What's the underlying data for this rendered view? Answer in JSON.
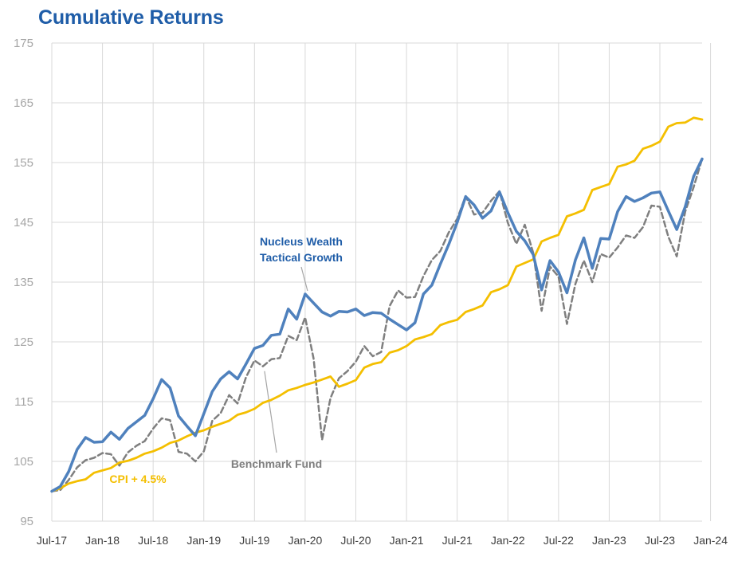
{
  "chart_data": {
    "type": "line",
    "title": "Cumulative Returns",
    "xlabel": "",
    "ylabel": "",
    "ylim": [
      95,
      175
    ],
    "yticks": [
      95,
      105,
      115,
      125,
      135,
      145,
      155,
      165,
      175
    ],
    "xticks": [
      "Jul-17",
      "Jan-18",
      "Jul-18",
      "Jan-19",
      "Jul-19",
      "Jan-20",
      "Jul-20",
      "Jan-21",
      "Jul-21",
      "Jan-22",
      "Jul-22",
      "Jan-23",
      "Jul-23",
      "Jan-24"
    ],
    "x_start": "Jul-17",
    "x_end": "Jan-24",
    "grid": "vertical and horizontal",
    "legend": "none (inline labels)",
    "series": [
      {
        "name": "Nucleus Wealth Tactical Growth",
        "label_lines": [
          "Nucleus Wealth",
          "Tactical Growth"
        ],
        "color": "#4f81bd",
        "dashed": false,
        "values": [
          100,
          100.8,
          103.3,
          107,
          109,
          108.2,
          108.3,
          109.9,
          108.7,
          110.5,
          111.6,
          112.7,
          115.5,
          118.7,
          117.3,
          112.6,
          110.9,
          109.3,
          113,
          116.7,
          118.8,
          120,
          118.8,
          121.3,
          123.9,
          124.4,
          126.1,
          126.3,
          130.5,
          128.8,
          133,
          131.5,
          130,
          129.3,
          130.1,
          130,
          130.5,
          129.4,
          129.9,
          129.8,
          128.8,
          127.9,
          127,
          128.2,
          133,
          134.5,
          138,
          141.3,
          145,
          149.3,
          147.9,
          145.7,
          146.9,
          150.1,
          146.6,
          143.5,
          141.9,
          139.6,
          133.7,
          138.6,
          136.7,
          133.2,
          138.7,
          142.4,
          137.3,
          142.3,
          142.2,
          146.8,
          149.3,
          148.5,
          149.1,
          149.9,
          150.1,
          146.9,
          143.8,
          147.6,
          152.7,
          155.6
        ]
      },
      {
        "name": "Benchmark Fund",
        "label_lines": [
          "Benchmark Fund"
        ],
        "color": "#7f7f7f",
        "dashed": true,
        "values": [
          100,
          100.2,
          101.9,
          104,
          105.2,
          105.6,
          106.4,
          106.2,
          104.3,
          106.5,
          107.6,
          108.4,
          110.5,
          112.2,
          111.9,
          106.6,
          106.3,
          105,
          106.7,
          111.8,
          113.1,
          116.1,
          114.7,
          119.1,
          121.9,
          120.9,
          122.1,
          122.3,
          126,
          125.3,
          129.1,
          122.2,
          108.6,
          115.6,
          118.9,
          120.1,
          121.7,
          124.3,
          122.6,
          123.3,
          131,
          133.6,
          132.4,
          132.5,
          136,
          138.7,
          140.2,
          143.3,
          145.6,
          149.4,
          146.3,
          146.6,
          148.6,
          150.2,
          144.9,
          141.4,
          144.6,
          139.9,
          130.2,
          137.6,
          135.9,
          128,
          134.7,
          138.6,
          135,
          139.7,
          139.1,
          140.8,
          142.8,
          142.4,
          144.2,
          147.8,
          147.6,
          142.6,
          139.3,
          146.8,
          150.9,
          155.6
        ]
      },
      {
        "name": "CPI + 4.5%",
        "label_lines": [
          "CPI + 4.5%"
        ],
        "color": "#f4bf00",
        "dashed": false,
        "values": [
          100,
          100.5,
          101.3,
          101.7,
          102,
          103.1,
          103.5,
          103.9,
          104.8,
          105.1,
          105.6,
          106.3,
          106.7,
          107.3,
          108.1,
          108.5,
          109.2,
          109.8,
          110.2,
          110.8,
          111.3,
          111.8,
          112.8,
          113.2,
          113.8,
          114.8,
          115.3,
          116,
          116.9,
          117.3,
          117.8,
          118.2,
          118.7,
          119.2,
          117.5,
          118,
          118.6,
          120.7,
          121.3,
          121.6,
          123.2,
          123.6,
          124.3,
          125.4,
          125.8,
          126.3,
          127.8,
          128.3,
          128.7,
          130,
          130.5,
          131.1,
          133.3,
          133.8,
          134.5,
          137.6,
          138.2,
          138.8,
          141.8,
          142.4,
          142.9,
          146,
          146.5,
          147.1,
          150.4,
          150.9,
          151.4,
          154.3,
          154.7,
          155.3,
          157.3,
          157.8,
          158.5,
          161,
          161.6,
          161.7,
          162.5,
          162.2
        ]
      }
    ],
    "annotations": [
      {
        "series": 0,
        "text": "Nucleus Wealth Tactical Growth"
      },
      {
        "series": 1,
        "text": "Benchmark Fund"
      },
      {
        "series": 2,
        "text": "CPI + 4.5%"
      }
    ]
  }
}
